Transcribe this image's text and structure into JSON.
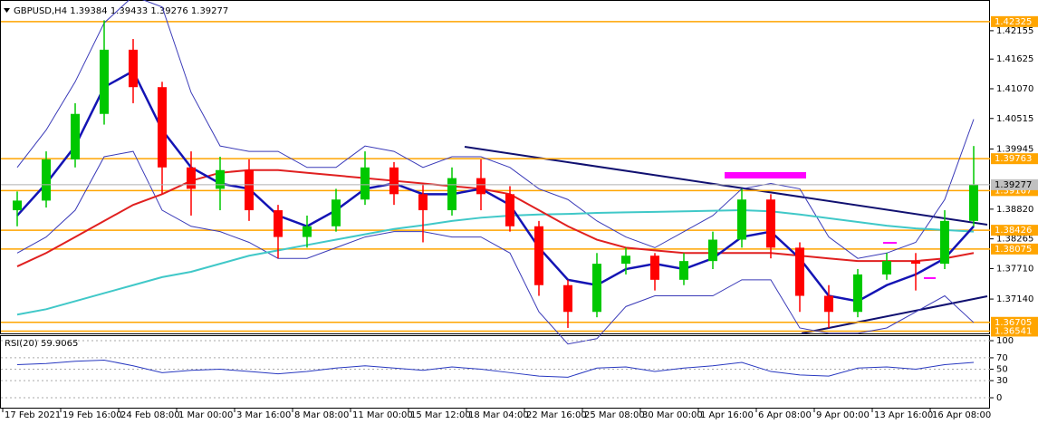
{
  "chart_data": [
    {
      "type": "candlestick",
      "title": "GBPUSD,H4",
      "ohlc_header": [
        1.39384,
        1.39433,
        1.39276,
        1.39277
      ],
      "categories": [
        "17 Feb 2021",
        null,
        "19 Feb 16:00",
        null,
        "24 Feb 08:00",
        null,
        "1 Mar 00:00",
        null,
        "3 Mar 16:00",
        null,
        "8 Mar 08:00",
        null,
        "11 Mar 00:00",
        null,
        "15 Mar 12:00",
        null,
        "18 Mar 04:00",
        null,
        "22 Mar 16:00",
        null,
        "25 Mar 08:00",
        null,
        "30 Mar 00:00",
        null,
        "1 Apr 16:00",
        null,
        "6 Apr 08:00",
        null,
        "9 Apr 00:00",
        null,
        "13 Apr 16:00",
        null,
        "16 Apr 08:00",
        null
      ],
      "open": [
        1.388,
        1.3898,
        1.3975,
        1.406,
        1.418,
        1.411,
        1.396,
        1.392,
        1.3955,
        1.388,
        1.383,
        1.385,
        1.39,
        1.396,
        1.391,
        1.388,
        1.394,
        1.391,
        1.385,
        1.374,
        1.369,
        1.378,
        1.3795,
        1.375,
        1.3785,
        1.3825,
        1.39,
        1.381,
        1.372,
        1.369,
        1.376,
        1.3785,
        1.378,
        1.386
      ],
      "high": [
        1.3915,
        1.399,
        1.408,
        1.4235,
        1.42,
        1.412,
        1.399,
        1.398,
        1.3975,
        1.389,
        1.387,
        1.392,
        1.399,
        1.397,
        1.393,
        1.396,
        1.3975,
        1.3925,
        1.386,
        1.375,
        1.38,
        1.381,
        1.38,
        1.38,
        1.384,
        1.392,
        1.391,
        1.382,
        1.374,
        1.377,
        1.38,
        1.38,
        1.388,
        1.4
      ],
      "low": [
        1.385,
        1.3885,
        1.396,
        1.404,
        1.408,
        1.391,
        1.387,
        1.388,
        1.386,
        1.379,
        1.381,
        1.384,
        1.389,
        1.389,
        1.382,
        1.387,
        1.388,
        1.384,
        1.372,
        1.366,
        1.368,
        1.376,
        1.373,
        1.374,
        1.377,
        1.381,
        1.379,
        1.369,
        1.366,
        1.368,
        1.375,
        1.373,
        1.377,
        1.385
      ],
      "close": [
        1.3898,
        1.3975,
        1.406,
        1.418,
        1.411,
        1.396,
        1.392,
        1.3955,
        1.388,
        1.383,
        1.385,
        1.39,
        1.396,
        1.391,
        1.388,
        1.394,
        1.391,
        1.385,
        1.374,
        1.369,
        1.378,
        1.3795,
        1.375,
        1.3785,
        1.3825,
        1.39,
        1.381,
        1.372,
        1.369,
        1.376,
        1.3785,
        1.378,
        1.386,
        1.3928
      ],
      "up_color": "#00c800",
      "down_color": "#ff0000",
      "series": [
        {
          "color": "#3a3ab8",
          "width": 1,
          "values": [
            1.396,
            1.403,
            1.412,
            1.423,
            1.428,
            1.426,
            1.41,
            1.4,
            1.399,
            1.399,
            1.396,
            1.396,
            1.4,
            1.399,
            1.396,
            1.398,
            1.398,
            1.396,
            1.392,
            1.39,
            1.386,
            1.383,
            1.381,
            1.384,
            1.387,
            1.392,
            1.393,
            1.392,
            1.383,
            1.379,
            1.38,
            1.382,
            1.39,
            1.405
          ]
        },
        {
          "color": "#3a3ab8",
          "width": 1,
          "values": [
            1.38,
            1.383,
            1.388,
            1.398,
            1.399,
            1.388,
            1.385,
            1.384,
            1.382,
            1.379,
            1.379,
            1.381,
            1.383,
            1.384,
            1.384,
            1.383,
            1.383,
            1.38,
            1.369,
            1.363,
            1.364,
            1.37,
            1.372,
            1.372,
            1.372,
            1.375,
            1.375,
            1.366,
            1.365,
            1.365,
            1.366,
            1.369,
            1.372,
            1.367
          ]
        },
        {
          "color": "#40c8c8",
          "width": 2,
          "values": [
            1.3685,
            1.3695,
            1.371,
            1.3725,
            1.374,
            1.3755,
            1.3765,
            1.378,
            1.3795,
            1.3805,
            1.3815,
            1.3825,
            1.3835,
            1.3845,
            1.3852,
            1.386,
            1.3866,
            1.387,
            1.3872,
            1.3873,
            1.3875,
            1.3876,
            1.3877,
            1.3878,
            1.3879,
            1.388,
            1.3878,
            1.3872,
            1.3865,
            1.3858,
            1.3851,
            1.3846,
            1.3843,
            1.384
          ]
        },
        {
          "color": "#e02020",
          "width": 2,
          "values": [
            1.3775,
            1.38,
            1.383,
            1.386,
            1.389,
            1.391,
            1.3935,
            1.395,
            1.3955,
            1.3955,
            1.395,
            1.3945,
            1.394,
            1.3935,
            1.393,
            1.3925,
            1.392,
            1.391,
            1.388,
            1.385,
            1.3825,
            1.381,
            1.3805,
            1.38,
            1.38,
            1.38,
            1.38,
            1.3795,
            1.379,
            1.3785,
            1.3785,
            1.3785,
            1.379,
            1.38
          ]
        },
        {
          "color": "#1414b4",
          "width": 2.5,
          "values": [
            1.387,
            1.393,
            1.4,
            1.411,
            1.414,
            1.403,
            1.396,
            1.393,
            1.392,
            1.387,
            1.385,
            1.388,
            1.392,
            1.393,
            1.391,
            1.391,
            1.392,
            1.389,
            1.381,
            1.375,
            1.374,
            1.377,
            1.378,
            1.377,
            1.379,
            1.383,
            1.384,
            1.379,
            1.372,
            1.371,
            1.374,
            1.376,
            1.379,
            1.385
          ]
        }
      ],
      "levels": {
        "color": "#ffa500",
        "values": [
          1.42325,
          1.39763,
          1.39167,
          1.38426,
          1.38075,
          1.36705,
          1.36541
        ]
      },
      "ylim": [
        1.36498,
        1.42712
      ],
      "yticks": [
        1.42155,
        1.41625,
        {
          "value": 1.4107,
          "label": "1.41070"
        },
        1.40515,
        1.39945,
        {
          "value": 1.3882,
          "label": "1.38820"
        },
        1.38265,
        {
          "value": 1.3771,
          "label": "1.37710"
        },
        {
          "value": 1.3714,
          "label": "1.37140"
        }
      ]
    },
    {
      "type": "line",
      "title": "RSI(20)",
      "last_value": 59.9065,
      "color": "#2838c0",
      "values": [
        58,
        60,
        64,
        66,
        56,
        44,
        48,
        50,
        46,
        42,
        46,
        52,
        56,
        52,
        48,
        54,
        50,
        44,
        38,
        36,
        52,
        54,
        46,
        52,
        56,
        62,
        46,
        40,
        38,
        52,
        54,
        50,
        58,
        62
      ],
      "ylim": [
        -19,
        108
      ],
      "yticks": [
        100,
        70,
        50,
        30,
        0
      ],
      "grid": true
    }
  ]
}
